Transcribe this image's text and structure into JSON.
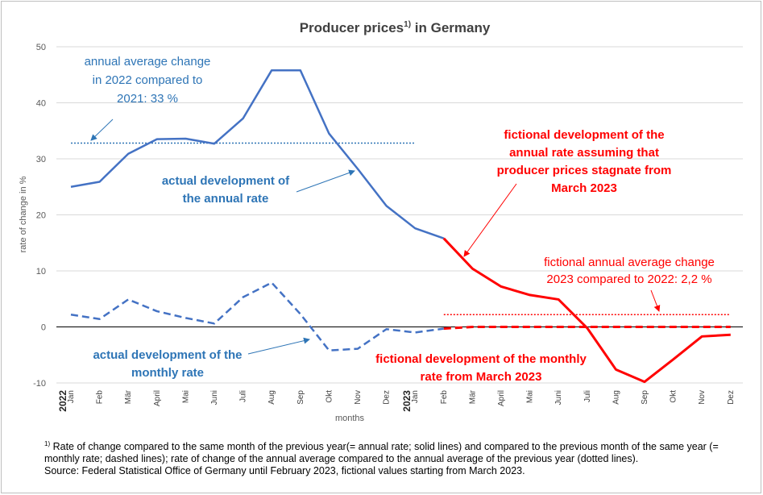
{
  "chart_data": {
    "type": "line",
    "title_main": "Producer prices",
    "title_sup": "1)",
    "title_tail": " in Germany",
    "ylabel": "rate of change in %",
    "xlabel": "months",
    "ylim": [
      -10,
      50
    ],
    "yticks": [
      -10,
      0,
      10,
      20,
      30,
      40,
      50
    ],
    "grid": true,
    "categories": [
      "Jan",
      "Feb",
      "Mär",
      "April",
      "Mai",
      "Juni",
      "Juli",
      "Aug",
      "Sep",
      "Okt",
      "Nov",
      "Dez",
      "Jan",
      "Feb",
      "Mär",
      "April",
      "Mai",
      "Juni",
      "Juli",
      "Aug",
      "Sep",
      "Okt",
      "Nov",
      "Dez"
    ],
    "year_labels": [
      {
        "label": "2022",
        "index": 0
      },
      {
        "label": "2023",
        "index": 12
      }
    ],
    "series": [
      {
        "id": "actual_annual",
        "style": "solid",
        "color": "#4472c4",
        "values": [
          25.0,
          25.9,
          30.9,
          33.5,
          33.6,
          32.7,
          37.2,
          45.8,
          45.8,
          34.5,
          28.2,
          21.6,
          17.6,
          15.8,
          null,
          null,
          null,
          null,
          null,
          null,
          null,
          null,
          null,
          null
        ]
      },
      {
        "id": "actual_monthly",
        "style": "dashed",
        "color": "#4472c4",
        "values": [
          2.2,
          1.4,
          4.9,
          2.8,
          1.6,
          0.6,
          5.3,
          7.9,
          2.3,
          -4.2,
          -3.9,
          -0.4,
          -1.0,
          -0.3,
          null,
          null,
          null,
          null,
          null,
          null,
          null,
          null,
          null,
          null
        ]
      },
      {
        "id": "fictional_annual",
        "style": "solid",
        "color": "#ff0000",
        "values": [
          null,
          null,
          null,
          null,
          null,
          null,
          null,
          null,
          null,
          null,
          null,
          null,
          null,
          15.8,
          10.4,
          7.2,
          5.7,
          4.9,
          -0.2,
          -7.6,
          -9.8,
          -5.8,
          -1.7,
          -1.4
        ]
      },
      {
        "id": "fictional_monthly",
        "style": "dashed",
        "color": "#ff0000",
        "values": [
          null,
          null,
          null,
          null,
          null,
          null,
          null,
          null,
          null,
          null,
          null,
          null,
          null,
          -0.3,
          0,
          0,
          0,
          0,
          0,
          0,
          0,
          0,
          0,
          0
        ]
      }
    ],
    "reference_lines": [
      {
        "id": "avg_2022",
        "value": 32.8,
        "from_index": 0,
        "to_index": 12,
        "style": "dotted",
        "color": "#2e75b6"
      },
      {
        "id": "avg_2023",
        "value": 2.2,
        "from_index": 13,
        "to_index": 23,
        "style": "dotted",
        "color": "#ff0000"
      }
    ],
    "annotations": {
      "avg_2022": [
        "annual average change",
        "in 2022 compared to",
        "2021: 33 %"
      ],
      "actual_annual": [
        "actual development of",
        "the annual rate"
      ],
      "actual_monthly": [
        "actual development of the",
        "monthly rate"
      ],
      "fictional_annual": [
        "fictional development of the",
        "annual rate assuming that",
        "producer prices stagnate from",
        "March 2023"
      ],
      "avg_2023": [
        "fictional annual average change",
        "2023 compared to 2022: 2,2 %"
      ],
      "fictional_monthly": [
        "fictional development of the monthly",
        "rate from March 2023"
      ]
    }
  },
  "footnote": {
    "marker": "1)",
    "line1": " Rate of change compared to the same month of the previous year(= annual rate; solid lines) and compared to the previous month of the same year (=",
    "line2": "monthly rate; dashed lines); rate of change of the annual average compared to the annual average of the previous year (dotted lines).",
    "line3": "Source: Federal Statistical Office of Germany until February 2023, fictional values starting from March 2023."
  }
}
